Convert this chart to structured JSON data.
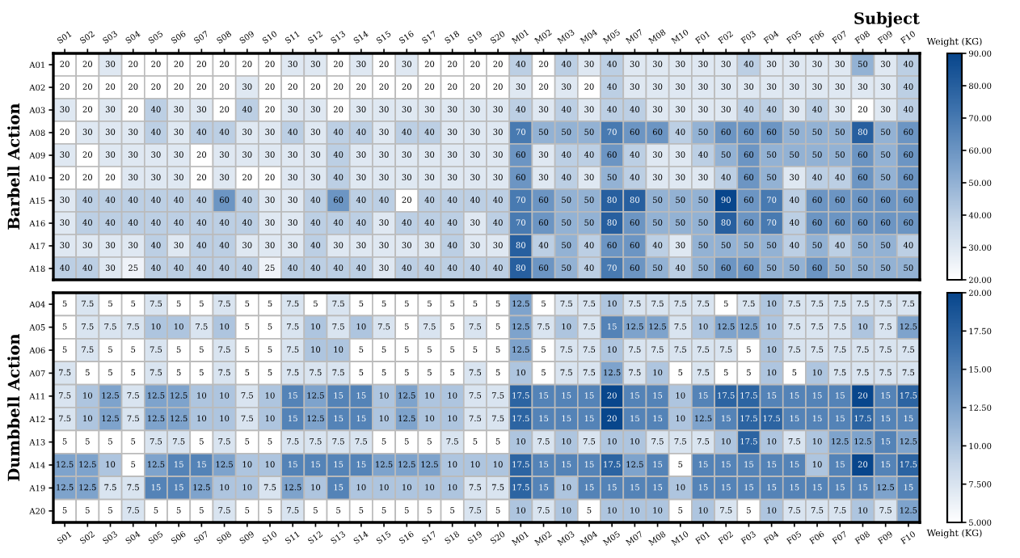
{
  "chart_data": [
    {
      "type": "heatmap",
      "xlabel": "Subject",
      "ylabel": "Barbell Action",
      "clabel": "Weight (KG)",
      "data_labels": true,
      "categories": [
        "S01",
        "S02",
        "S03",
        "S04",
        "S05",
        "S06",
        "S07",
        "S08",
        "S09",
        "S10",
        "S11",
        "S12",
        "S13",
        "S14",
        "S15",
        "S16",
        "S17",
        "S18",
        "S19",
        "S20",
        "M01",
        "M02",
        "M03",
        "M04",
        "M05",
        "M07",
        "M08",
        "M10",
        "F01",
        "F02",
        "F03",
        "F04",
        "F05",
        "F06",
        "F07",
        "F08",
        "F09",
        "F10"
      ],
      "y_categories": [
        "A01",
        "A02",
        "A03",
        "A08",
        "A09",
        "A10",
        "A15",
        "A16",
        "A17",
        "A18"
      ],
      "cells": [
        [
          20,
          20,
          30,
          20,
          20,
          20,
          20,
          20,
          20,
          20,
          30,
          30,
          20,
          30,
          20,
          30,
          20,
          20,
          20,
          20,
          40,
          20,
          40,
          30,
          40,
          30,
          30,
          30,
          30,
          30,
          40,
          30,
          30,
          30,
          30,
          50,
          30,
          40
        ],
        [
          20,
          20,
          20,
          20,
          20,
          20,
          20,
          20,
          30,
          20,
          20,
          20,
          20,
          20,
          20,
          20,
          20,
          20,
          20,
          20,
          30,
          20,
          30,
          20,
          40,
          30,
          30,
          30,
          30,
          30,
          30,
          30,
          30,
          30,
          30,
          30,
          30,
          40
        ],
        [
          30,
          20,
          30,
          20,
          40,
          30,
          30,
          20,
          40,
          20,
          30,
          30,
          20,
          30,
          30,
          30,
          30,
          30,
          30,
          30,
          40,
          30,
          40,
          30,
          40,
          40,
          30,
          30,
          30,
          30,
          40,
          40,
          30,
          40,
          30,
          20,
          30,
          40
        ],
        [
          20,
          30,
          30,
          30,
          40,
          30,
          40,
          40,
          30,
          30,
          40,
          30,
          40,
          40,
          30,
          40,
          40,
          30,
          30,
          30,
          70,
          50,
          50,
          50,
          70,
          60,
          60,
          40,
          50,
          60,
          60,
          60,
          50,
          50,
          50,
          80,
          50,
          60
        ],
        [
          30,
          20,
          30,
          30,
          30,
          30,
          20,
          30,
          30,
          30,
          30,
          30,
          40,
          30,
          30,
          30,
          30,
          30,
          30,
          30,
          60,
          30,
          40,
          40,
          60,
          40,
          30,
          30,
          40,
          50,
          60,
          50,
          50,
          50,
          50,
          60,
          50,
          60
        ],
        [
          20,
          20,
          20,
          30,
          30,
          30,
          20,
          30,
          20,
          20,
          30,
          30,
          40,
          30,
          30,
          30,
          30,
          30,
          30,
          30,
          60,
          30,
          40,
          30,
          50,
          40,
          30,
          30,
          30,
          40,
          60,
          50,
          30,
          40,
          40,
          60,
          50,
          60
        ],
        [
          30,
          40,
          40,
          40,
          40,
          40,
          40,
          60,
          40,
          30,
          30,
          40,
          60,
          40,
          40,
          20,
          40,
          40,
          40,
          40,
          70,
          60,
          50,
          50,
          80,
          80,
          50,
          50,
          50,
          90,
          60,
          70,
          40,
          60,
          60,
          60,
          60,
          60
        ],
        [
          30,
          40,
          40,
          40,
          40,
          40,
          40,
          40,
          40,
          30,
          30,
          40,
          40,
          40,
          30,
          40,
          40,
          40,
          30,
          40,
          70,
          60,
          50,
          50,
          80,
          60,
          50,
          50,
          50,
          80,
          60,
          70,
          40,
          60,
          60,
          60,
          60,
          60
        ],
        [
          30,
          30,
          30,
          30,
          40,
          30,
          40,
          40,
          30,
          30,
          30,
          40,
          30,
          30,
          30,
          30,
          30,
          40,
          30,
          30,
          80,
          40,
          50,
          40,
          60,
          60,
          40,
          30,
          50,
          50,
          50,
          50,
          40,
          50,
          40,
          50,
          50,
          40
        ],
        [
          40,
          40,
          30,
          25,
          40,
          40,
          40,
          40,
          40,
          25,
          40,
          40,
          40,
          40,
          30,
          40,
          40,
          40,
          40,
          40,
          80,
          60,
          50,
          40,
          70,
          60,
          50,
          40,
          50,
          60,
          60,
          50,
          50,
          60,
          50,
          50,
          50,
          50
        ]
      ],
      "clim": [
        20,
        90
      ],
      "cticks": [
        {
          "value": 20,
          "label": "20.00"
        },
        {
          "value": 30,
          "label": "30.00"
        },
        {
          "value": 40,
          "label": "40.00"
        },
        {
          "value": 50,
          "label": "50.00"
        },
        {
          "value": 60,
          "label": "60.00"
        },
        {
          "value": 70,
          "label": "70.00"
        },
        {
          "value": 80,
          "label": "80.00"
        },
        {
          "value": 90,
          "label": "90.00"
        }
      ]
    },
    {
      "type": "heatmap",
      "ylabel": "Dumbbell Action",
      "clabel": "Weight (KG)",
      "data_labels": true,
      "categories": [
        "S01",
        "S02",
        "S03",
        "S04",
        "S05",
        "S06",
        "S07",
        "S08",
        "S09",
        "S10",
        "S11",
        "S12",
        "S13",
        "S14",
        "S15",
        "S16",
        "S17",
        "S18",
        "S19",
        "S20",
        "M01",
        "M02",
        "M03",
        "M04",
        "M05",
        "M07",
        "M08",
        "M10",
        "F01",
        "F02",
        "F03",
        "F04",
        "F05",
        "F06",
        "F07",
        "F08",
        "F09",
        "F10"
      ],
      "y_categories": [
        "A04",
        "A05",
        "A06",
        "A07",
        "A11",
        "A12",
        "A13",
        "A14",
        "A19",
        "A20"
      ],
      "cells": [
        [
          5,
          7.5,
          5,
          5,
          7.5,
          5,
          5,
          7.5,
          5,
          5,
          7.5,
          5,
          7.5,
          5,
          5,
          5,
          5,
          5,
          5,
          5,
          12.5,
          5,
          7.5,
          7.5,
          10,
          7.5,
          7.5,
          7.5,
          7.5,
          5,
          7.5,
          10,
          7.5,
          7.5,
          7.5,
          7.5,
          7.5,
          7.5
        ],
        [
          5,
          7.5,
          7.5,
          7.5,
          10,
          10,
          7.5,
          10,
          5,
          5,
          7.5,
          10,
          7.5,
          10,
          7.5,
          5,
          7.5,
          5,
          7.5,
          5,
          12.5,
          7.5,
          10,
          7.5,
          15,
          12.5,
          12.5,
          7.5,
          10,
          12.5,
          12.5,
          10,
          7.5,
          7.5,
          7.5,
          10,
          7.5,
          12.5
        ],
        [
          5,
          7.5,
          5,
          5,
          7.5,
          5,
          5,
          7.5,
          5,
          5,
          7.5,
          10,
          10,
          5,
          5,
          5,
          5,
          5,
          5,
          5,
          12.5,
          5,
          7.5,
          7.5,
          10,
          7.5,
          7.5,
          7.5,
          7.5,
          7.5,
          5,
          10,
          7.5,
          7.5,
          7.5,
          7.5,
          7.5,
          7.5
        ],
        [
          7.5,
          5,
          5,
          5,
          7.5,
          5,
          5,
          7.5,
          5,
          5,
          7.5,
          7.5,
          7.5,
          5,
          5,
          5,
          5,
          5,
          7.5,
          5,
          10,
          5,
          7.5,
          7.5,
          12.5,
          7.5,
          10,
          5,
          7.5,
          5,
          5,
          10,
          5,
          10,
          7.5,
          7.5,
          7.5,
          7.5
        ],
        [
          7.5,
          10,
          12.5,
          7.5,
          12.5,
          12.5,
          10,
          10,
          7.5,
          10,
          15,
          12.5,
          15,
          15,
          10,
          12.5,
          10,
          10,
          7.5,
          7.5,
          17.5,
          15,
          15,
          15,
          20,
          15,
          15,
          10,
          15,
          17.5,
          17.5,
          15,
          15,
          15,
          15,
          20,
          15,
          17.5
        ],
        [
          7.5,
          10,
          12.5,
          7.5,
          12.5,
          12.5,
          10,
          10,
          7.5,
          10,
          15,
          12.5,
          15,
          15,
          10,
          12.5,
          10,
          10,
          7.5,
          7.5,
          17.5,
          15,
          15,
          15,
          20,
          15,
          15,
          10,
          12.5,
          15,
          17.5,
          17.5,
          15,
          15,
          15,
          17.5,
          15,
          15
        ],
        [
          5,
          5,
          5,
          5,
          7.5,
          7.5,
          5,
          7.5,
          5,
          5,
          7.5,
          7.5,
          7.5,
          7.5,
          5,
          5,
          5,
          7.5,
          5,
          5,
          10,
          7.5,
          10,
          7.5,
          10,
          10,
          7.5,
          7.5,
          7.5,
          10,
          17.5,
          10,
          7.5,
          10,
          12.5,
          12.5,
          15,
          12.5
        ],
        [
          12.5,
          12.5,
          10,
          5,
          12.5,
          15,
          15,
          12.5,
          10,
          10,
          15,
          15,
          15,
          15,
          12.5,
          12.5,
          12.5,
          10,
          10,
          10,
          17.5,
          15,
          15,
          15,
          17.5,
          12.5,
          15,
          5,
          15,
          15,
          15,
          15,
          15,
          10,
          15,
          20,
          15,
          17.5
        ],
        [
          12.5,
          12.5,
          7.5,
          7.5,
          15,
          15,
          12.5,
          10,
          10,
          7.5,
          12.5,
          10,
          15,
          10,
          10,
          10,
          10,
          10,
          7.5,
          7.5,
          17.5,
          15,
          10,
          15,
          15,
          15,
          15,
          10,
          15,
          15,
          15,
          15,
          15,
          15,
          15,
          15,
          12.5,
          15
        ],
        [
          5,
          5,
          5,
          7.5,
          5,
          5,
          5,
          7.5,
          5,
          5,
          7.5,
          5,
          5,
          5,
          5,
          5,
          5,
          5,
          7.5,
          5,
          10,
          7.5,
          10,
          5,
          10,
          10,
          10,
          5,
          10,
          7.5,
          5,
          10,
          7.5,
          7.5,
          7.5,
          10,
          7.5,
          12.5
        ]
      ],
      "clim": [
        5,
        20
      ],
      "cticks": [
        {
          "value": 5,
          "label": "5.000"
        },
        {
          "value": 7.5,
          "label": "7.500"
        },
        {
          "value": 10,
          "label": "10.00"
        },
        {
          "value": 12.5,
          "label": "12.50"
        },
        {
          "value": 15,
          "label": "15.00"
        },
        {
          "value": 17.5,
          "label": "17.50"
        },
        {
          "value": 20,
          "label": "20.00"
        }
      ]
    }
  ]
}
